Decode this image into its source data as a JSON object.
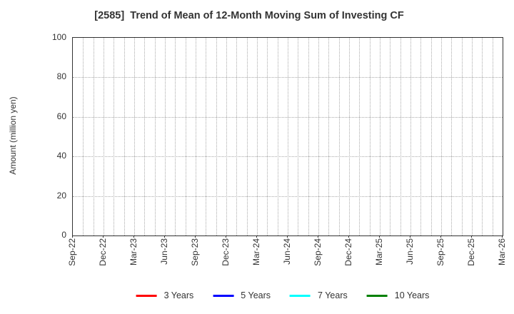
{
  "chart_data": {
    "type": "line",
    "title": "[2585]  Trend of Mean of 12-Month Moving Sum of Investing CF",
    "ylabel": "Amount (million yen)",
    "xlabel": "",
    "ylim": [
      0,
      100
    ],
    "yticks": [
      0,
      20,
      40,
      60,
      80,
      100
    ],
    "x_tick_labels": [
      "Sep-22",
      "Dec-22",
      "Mar-23",
      "Jun-23",
      "Sep-23",
      "Dec-23",
      "Mar-24",
      "Jun-24",
      "Sep-24",
      "Dec-24",
      "Mar-25",
      "Jun-25",
      "Sep-25",
      "Dec-25",
      "Mar-26"
    ],
    "minor_vertical_gridlines_per_label_interval": 3,
    "grid": true,
    "grid_style": "dotted",
    "grid_color": "#aaaaaa",
    "axis_color": "#333333",
    "legend_position": "bottom",
    "plot_has_visible_lines": false,
    "series": [
      {
        "name": "3 Years",
        "color": "#ff0000",
        "values": []
      },
      {
        "name": "5 Years",
        "color": "#0000ff",
        "values": []
      },
      {
        "name": "7 Years",
        "color": "#00ffff",
        "values": []
      },
      {
        "name": "10 Years",
        "color": "#008000",
        "values": []
      }
    ]
  }
}
